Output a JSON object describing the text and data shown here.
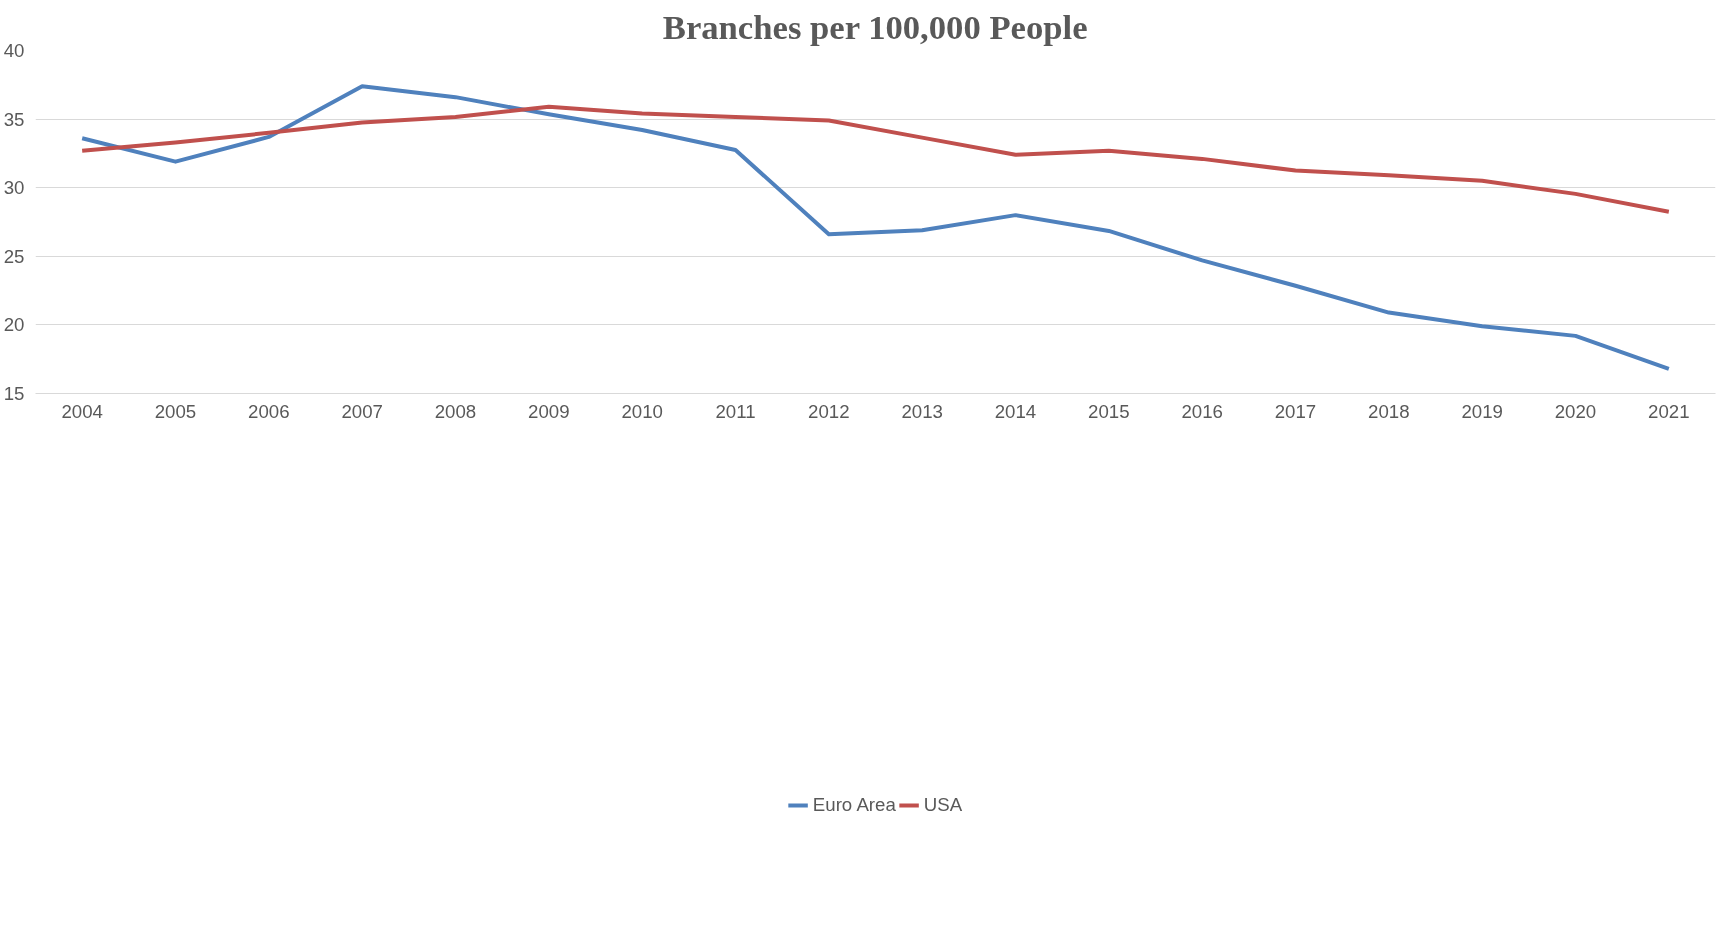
{
  "chart_data": {
    "type": "line",
    "title": "Branches per 100,000 People",
    "categories": [
      "2004",
      "2005",
      "2006",
      "2007",
      "2008",
      "2009",
      "2010",
      "2011",
      "2012",
      "2013",
      "2014",
      "2015",
      "2016",
      "2017",
      "2018",
      "2019",
      "2020",
      "2021"
    ],
    "series": [
      {
        "name": "Euro Area",
        "color": "#4f81bd",
        "values": [
          33.6,
          31.9,
          33.7,
          37.4,
          36.6,
          35.35,
          34.2,
          32.75,
          26.6,
          26.9,
          28.0,
          26.85,
          24.7,
          22.85,
          20.9,
          19.9,
          19.2,
          16.8
        ]
      },
      {
        "name": "USA",
        "color": "#c0504d",
        "values": [
          32.7,
          33.3,
          34.0,
          34.75,
          35.15,
          35.9,
          35.4,
          35.15,
          34.9,
          33.65,
          32.4,
          32.7,
          32.1,
          31.25,
          30.9,
          30.5,
          29.55,
          28.25
        ]
      }
    ],
    "ylim": [
      15,
      40
    ],
    "yticks": [
      15,
      20,
      25,
      30,
      35,
      40
    ],
    "grid": "y",
    "legend": "bottom",
    "marker": "none",
    "line_style": "solid"
  }
}
